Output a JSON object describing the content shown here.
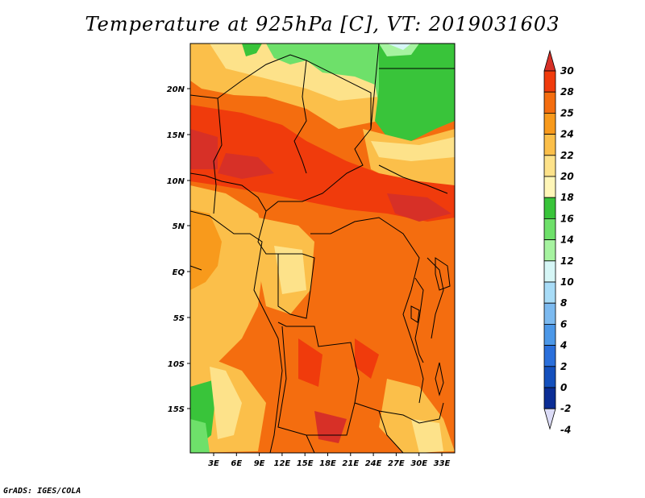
{
  "title": "Temperature at 925hPa [C], VT: 2019031603",
  "credit": "GrADS: IGES/COLA",
  "map": {
    "lat_labels": [
      "20N",
      "15N",
      "10N",
      "5N",
      "EQ",
      "5S",
      "10S",
      "15S"
    ],
    "lon_labels": [
      "3E",
      "6E",
      "9E",
      "12E",
      "15E",
      "18E",
      "21E",
      "24E",
      "27E",
      "30E",
      "33E"
    ]
  },
  "colorbar": {
    "levels": [
      "30",
      "28",
      "25",
      "24",
      "22",
      "20",
      "18",
      "16",
      "14",
      "12",
      "10",
      "8",
      "6",
      "4",
      "2",
      "0",
      "-2",
      "-4"
    ],
    "colors": [
      "#d73027",
      "#f03b0c",
      "#f46d0f",
      "#f89a1c",
      "#fbbf4a",
      "#fde28a",
      "#fff6b8",
      "#39c43a",
      "#6ee06a",
      "#a6f3a0",
      "#d6f6f6",
      "#a8dcf7",
      "#7cbaf0",
      "#4c98e8",
      "#2a6fdb",
      "#1450bd",
      "#0b2d95",
      "#091066"
    ]
  }
}
